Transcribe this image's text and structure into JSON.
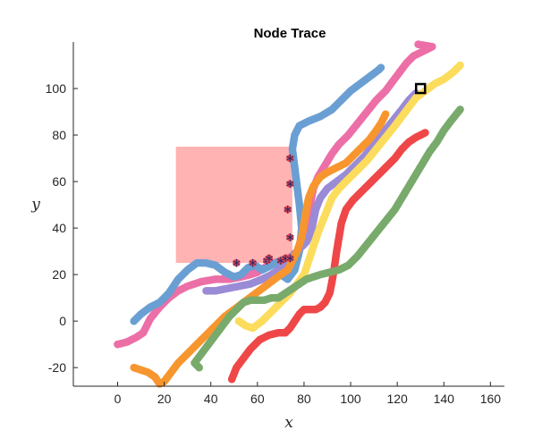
{
  "chart_data": {
    "type": "scatter",
    "title": "Node Trace",
    "xlabel": "x",
    "ylabel": "y",
    "xlim": [
      -19,
      166
    ],
    "ylim": [
      -28,
      120
    ],
    "xticks": [
      0,
      20,
      40,
      60,
      80,
      100,
      120,
      140,
      160
    ],
    "yticks": [
      -20,
      0,
      20,
      40,
      60,
      80,
      100
    ],
    "box": {
      "axes_visible": [
        "left",
        "bottom"
      ]
    },
    "obstacle": {
      "x": [
        25,
        75
      ],
      "y": [
        25,
        75
      ],
      "color": "#ffb3b3"
    },
    "goal_marker": {
      "x": 130,
      "y": 100,
      "color": "#000000"
    },
    "series": [
      {
        "color": "#ec6fa7",
        "points": [
          [
            0,
            -10
          ],
          [
            4,
            -9
          ],
          [
            8,
            -7
          ],
          [
            11,
            -5
          ],
          [
            14,
            1
          ],
          [
            18,
            6
          ],
          [
            22,
            10
          ],
          [
            26,
            13
          ],
          [
            30,
            15
          ],
          [
            36,
            17
          ],
          [
            42,
            18
          ],
          [
            48,
            18
          ],
          [
            53,
            19
          ],
          [
            57,
            20
          ],
          [
            60,
            21
          ],
          [
            63,
            23
          ],
          [
            67,
            25
          ],
          [
            71,
            26
          ],
          [
            75,
            28
          ],
          [
            78,
            31
          ],
          [
            80,
            35
          ],
          [
            81,
            40
          ],
          [
            82,
            46
          ],
          [
            83,
            52
          ],
          [
            84,
            57
          ],
          [
            86,
            62
          ],
          [
            89,
            67
          ],
          [
            92,
            72
          ],
          [
            95,
            76
          ],
          [
            99,
            80
          ],
          [
            103,
            85
          ],
          [
            107,
            90
          ],
          [
            111,
            95
          ],
          [
            115,
            99
          ],
          [
            118,
            103
          ],
          [
            121,
            107
          ],
          [
            124,
            111
          ],
          [
            127,
            114
          ],
          [
            131,
            116
          ],
          [
            135,
            118
          ],
          [
            129,
            119
          ]
        ]
      },
      {
        "color": "#6a9fd3",
        "points": [
          [
            7,
            0
          ],
          [
            10,
            3
          ],
          [
            14,
            6
          ],
          [
            18,
            8
          ],
          [
            22,
            12
          ],
          [
            26,
            18
          ],
          [
            30,
            22
          ],
          [
            34,
            25
          ],
          [
            38,
            25
          ],
          [
            42,
            24
          ],
          [
            46,
            21
          ],
          [
            50,
            19
          ],
          [
            53,
            20
          ],
          [
            56,
            23
          ],
          [
            59,
            24
          ],
          [
            62,
            22
          ],
          [
            66,
            24
          ],
          [
            70,
            26
          ],
          [
            72,
            23
          ],
          [
            70,
            20
          ],
          [
            73,
            18
          ],
          [
            76,
            22
          ],
          [
            78,
            30
          ],
          [
            79,
            40
          ],
          [
            78,
            50
          ],
          [
            77,
            58
          ],
          [
            76,
            66
          ],
          [
            75,
            74
          ],
          [
            76,
            80
          ],
          [
            78,
            84
          ],
          [
            82,
            86
          ],
          [
            87,
            88
          ],
          [
            92,
            91
          ],
          [
            96,
            95
          ],
          [
            100,
            99
          ],
          [
            104,
            102
          ],
          [
            108,
            105
          ],
          [
            112,
            108
          ],
          [
            113,
            109
          ]
        ]
      },
      {
        "color": "#9a8bd6",
        "points": [
          [
            38,
            13
          ],
          [
            42,
            13
          ],
          [
            47,
            14
          ],
          [
            52,
            15
          ],
          [
            57,
            16
          ],
          [
            62,
            18
          ],
          [
            66,
            20
          ],
          [
            69,
            22
          ],
          [
            72,
            25
          ],
          [
            75,
            28
          ],
          [
            77,
            30
          ],
          [
            79,
            32
          ],
          [
            81,
            34
          ],
          [
            83,
            38
          ],
          [
            84,
            43
          ],
          [
            85,
            48
          ],
          [
            87,
            53
          ],
          [
            90,
            57
          ],
          [
            94,
            60
          ],
          [
            98,
            63
          ],
          [
            102,
            67
          ],
          [
            106,
            71
          ],
          [
            110,
            76
          ],
          [
            114,
            81
          ],
          [
            118,
            86
          ],
          [
            122,
            91
          ],
          [
            125,
            95
          ],
          [
            128,
            98
          ]
        ]
      },
      {
        "color": "#f7962f",
        "points": [
          [
            7,
            -20
          ],
          [
            10,
            -21
          ],
          [
            13,
            -22
          ],
          [
            16,
            -24
          ],
          [
            18,
            -27
          ],
          [
            20,
            -26
          ],
          [
            23,
            -22
          ],
          [
            26,
            -18
          ],
          [
            30,
            -14
          ],
          [
            34,
            -10
          ],
          [
            38,
            -6
          ],
          [
            42,
            -2
          ],
          [
            46,
            2
          ],
          [
            50,
            5
          ],
          [
            54,
            8
          ],
          [
            58,
            11
          ],
          [
            62,
            14
          ],
          [
            66,
            17
          ],
          [
            70,
            20
          ],
          [
            73,
            22
          ],
          [
            75,
            26
          ],
          [
            77,
            30
          ],
          [
            79,
            36
          ],
          [
            80,
            42
          ],
          [
            81,
            48
          ],
          [
            82,
            53
          ],
          [
            84,
            58
          ],
          [
            87,
            62
          ],
          [
            90,
            64
          ],
          [
            94,
            66
          ],
          [
            98,
            68
          ],
          [
            101,
            71
          ],
          [
            104,
            74
          ],
          [
            108,
            78
          ],
          [
            111,
            82
          ],
          [
            113,
            85
          ],
          [
            115,
            89
          ]
        ]
      },
      {
        "color": "#fcdc5c",
        "points": [
          [
            52,
            0
          ],
          [
            55,
            -2
          ],
          [
            58,
            -3
          ],
          [
            62,
            0
          ],
          [
            66,
            4
          ],
          [
            70,
            8
          ],
          [
            74,
            12
          ],
          [
            77,
            16
          ],
          [
            80,
            20
          ],
          [
            82,
            26
          ],
          [
            84,
            32
          ],
          [
            86,
            38
          ],
          [
            88,
            43
          ],
          [
            90,
            48
          ],
          [
            92,
            53
          ],
          [
            95,
            57
          ],
          [
            99,
            61
          ],
          [
            103,
            65
          ],
          [
            107,
            69
          ],
          [
            111,
            74
          ],
          [
            115,
            79
          ],
          [
            119,
            84
          ],
          [
            122,
            88
          ],
          [
            125,
            92
          ],
          [
            128,
            96
          ],
          [
            132,
            99
          ],
          [
            136,
            102
          ],
          [
            140,
            104
          ],
          [
            144,
            107
          ],
          [
            147,
            110
          ]
        ]
      },
      {
        "color": "#ef4748",
        "points": [
          [
            49,
            -25
          ],
          [
            51,
            -20
          ],
          [
            54,
            -16
          ],
          [
            57,
            -12
          ],
          [
            61,
            -8
          ],
          [
            65,
            -6
          ],
          [
            69,
            -5
          ],
          [
            72,
            -5
          ],
          [
            74,
            -3
          ],
          [
            76,
            0
          ],
          [
            78,
            3
          ],
          [
            80,
            5
          ],
          [
            83,
            5
          ],
          [
            85,
            5
          ],
          [
            87,
            6
          ],
          [
            89,
            8
          ],
          [
            91,
            12
          ],
          [
            92,
            17
          ],
          [
            93,
            23
          ],
          [
            94,
            30
          ],
          [
            95,
            36
          ],
          [
            96,
            42
          ],
          [
            98,
            48
          ],
          [
            101,
            52
          ],
          [
            105,
            56
          ],
          [
            109,
            60
          ],
          [
            113,
            64
          ],
          [
            116,
            67
          ],
          [
            119,
            70
          ],
          [
            122,
            74
          ],
          [
            125,
            77
          ],
          [
            128,
            79
          ],
          [
            132,
            81
          ]
        ]
      },
      {
        "color": "#78aa6c",
        "points": [
          [
            35,
            -20
          ],
          [
            33,
            -18
          ],
          [
            36,
            -14
          ],
          [
            39,
            -10
          ],
          [
            42,
            -6
          ],
          [
            45,
            -2
          ],
          [
            48,
            2
          ],
          [
            51,
            5
          ],
          [
            54,
            8
          ],
          [
            57,
            9
          ],
          [
            60,
            9
          ],
          [
            63,
            9
          ],
          [
            66,
            10
          ],
          [
            69,
            10
          ],
          [
            72,
            12
          ],
          [
            75,
            14
          ],
          [
            78,
            16
          ],
          [
            81,
            18
          ],
          [
            84,
            19
          ],
          [
            87,
            20
          ],
          [
            91,
            21
          ],
          [
            95,
            22
          ],
          [
            99,
            24
          ],
          [
            103,
            28
          ],
          [
            107,
            33
          ],
          [
            111,
            38
          ],
          [
            115,
            43
          ],
          [
            119,
            48
          ],
          [
            122,
            53
          ],
          [
            125,
            58
          ],
          [
            128,
            63
          ],
          [
            131,
            68
          ],
          [
            134,
            73
          ],
          [
            137,
            77
          ],
          [
            140,
            82
          ],
          [
            143,
            86
          ],
          [
            147,
            91
          ]
        ]
      }
    ],
    "tree_nodes": [
      [
        51,
        25
      ],
      [
        58,
        25
      ],
      [
        64,
        26
      ],
      [
        65,
        27
      ],
      [
        70,
        26
      ],
      [
        72,
        27
      ],
      [
        74,
        27
      ],
      [
        74,
        36
      ],
      [
        73,
        48
      ],
      [
        74,
        59
      ],
      [
        74,
        70
      ]
    ]
  }
}
